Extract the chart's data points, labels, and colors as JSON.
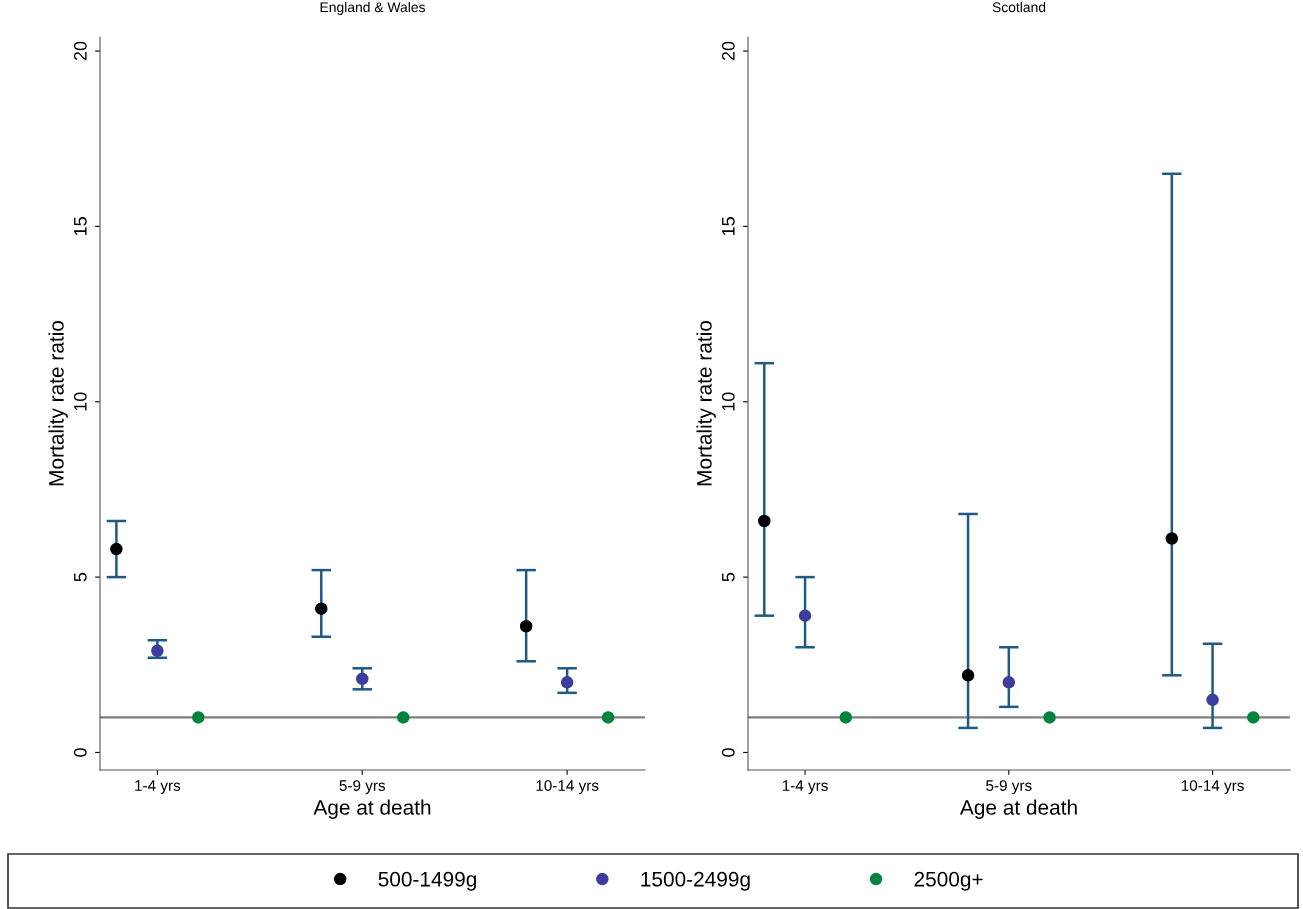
{
  "chart_data": [
    {
      "type": "scatter",
      "title": "England & Wales",
      "xlabel": "Age at death",
      "ylabel": "Mortality rate ratio",
      "categories": [
        "1-4 yrs",
        "5-9 yrs",
        "10-14 yrs"
      ],
      "ylim": [
        -0.5,
        20.4
      ],
      "yticks": [
        0,
        5,
        10,
        15,
        20
      ],
      "grid": false,
      "marker": "circle",
      "legend": "bottom",
      "ref_lines": [
        {
          "axis": "y",
          "value": 1,
          "color": "#7f7f7f"
        }
      ],
      "series": [
        {
          "name": "500-1499g",
          "color": "#000000",
          "values": [
            5.8,
            4.1,
            3.6
          ],
          "errors": [
            [
              5.0,
              6.6
            ],
            [
              3.3,
              5.2
            ],
            [
              2.6,
              5.2
            ]
          ]
        },
        {
          "name": "1500-2499g",
          "color": "#3d3d9e",
          "values": [
            2.9,
            2.1,
            2.0
          ],
          "errors": [
            [
              2.7,
              3.2
            ],
            [
              1.8,
              2.4
            ],
            [
              1.7,
              2.4
            ]
          ]
        },
        {
          "name": "2500g+",
          "color": "#00843d",
          "values": [
            1,
            1,
            1
          ]
        }
      ]
    },
    {
      "type": "scatter",
      "title": "Scotland",
      "xlabel": "Age at death",
      "ylabel": "Mortality rate ratio",
      "categories": [
        "1-4 yrs",
        "5-9 yrs",
        "10-14 yrs"
      ],
      "ylim": [
        -0.5,
        20.4
      ],
      "yticks": [
        0,
        5,
        10,
        15,
        20
      ],
      "grid": false,
      "marker": "circle",
      "ref_lines": [
        {
          "axis": "y",
          "value": 1,
          "color": "#7f7f7f"
        }
      ],
      "series": [
        {
          "name": "500-1499g",
          "color": "#000000",
          "values": [
            6.6,
            2.2,
            6.1
          ],
          "errors": [
            [
              3.9,
              11.1
            ],
            [
              0.7,
              6.8
            ],
            [
              2.2,
              16.5
            ]
          ]
        },
        {
          "name": "1500-2499g",
          "color": "#3d3d9e",
          "values": [
            3.9,
            2.0,
            1.5
          ],
          "errors": [
            [
              3.0,
              5.0
            ],
            [
              1.3,
              3.0
            ],
            [
              0.7,
              3.1
            ]
          ]
        },
        {
          "name": "2500g+",
          "color": "#00843d",
          "values": [
            1,
            1,
            1
          ]
        }
      ]
    }
  ]
}
